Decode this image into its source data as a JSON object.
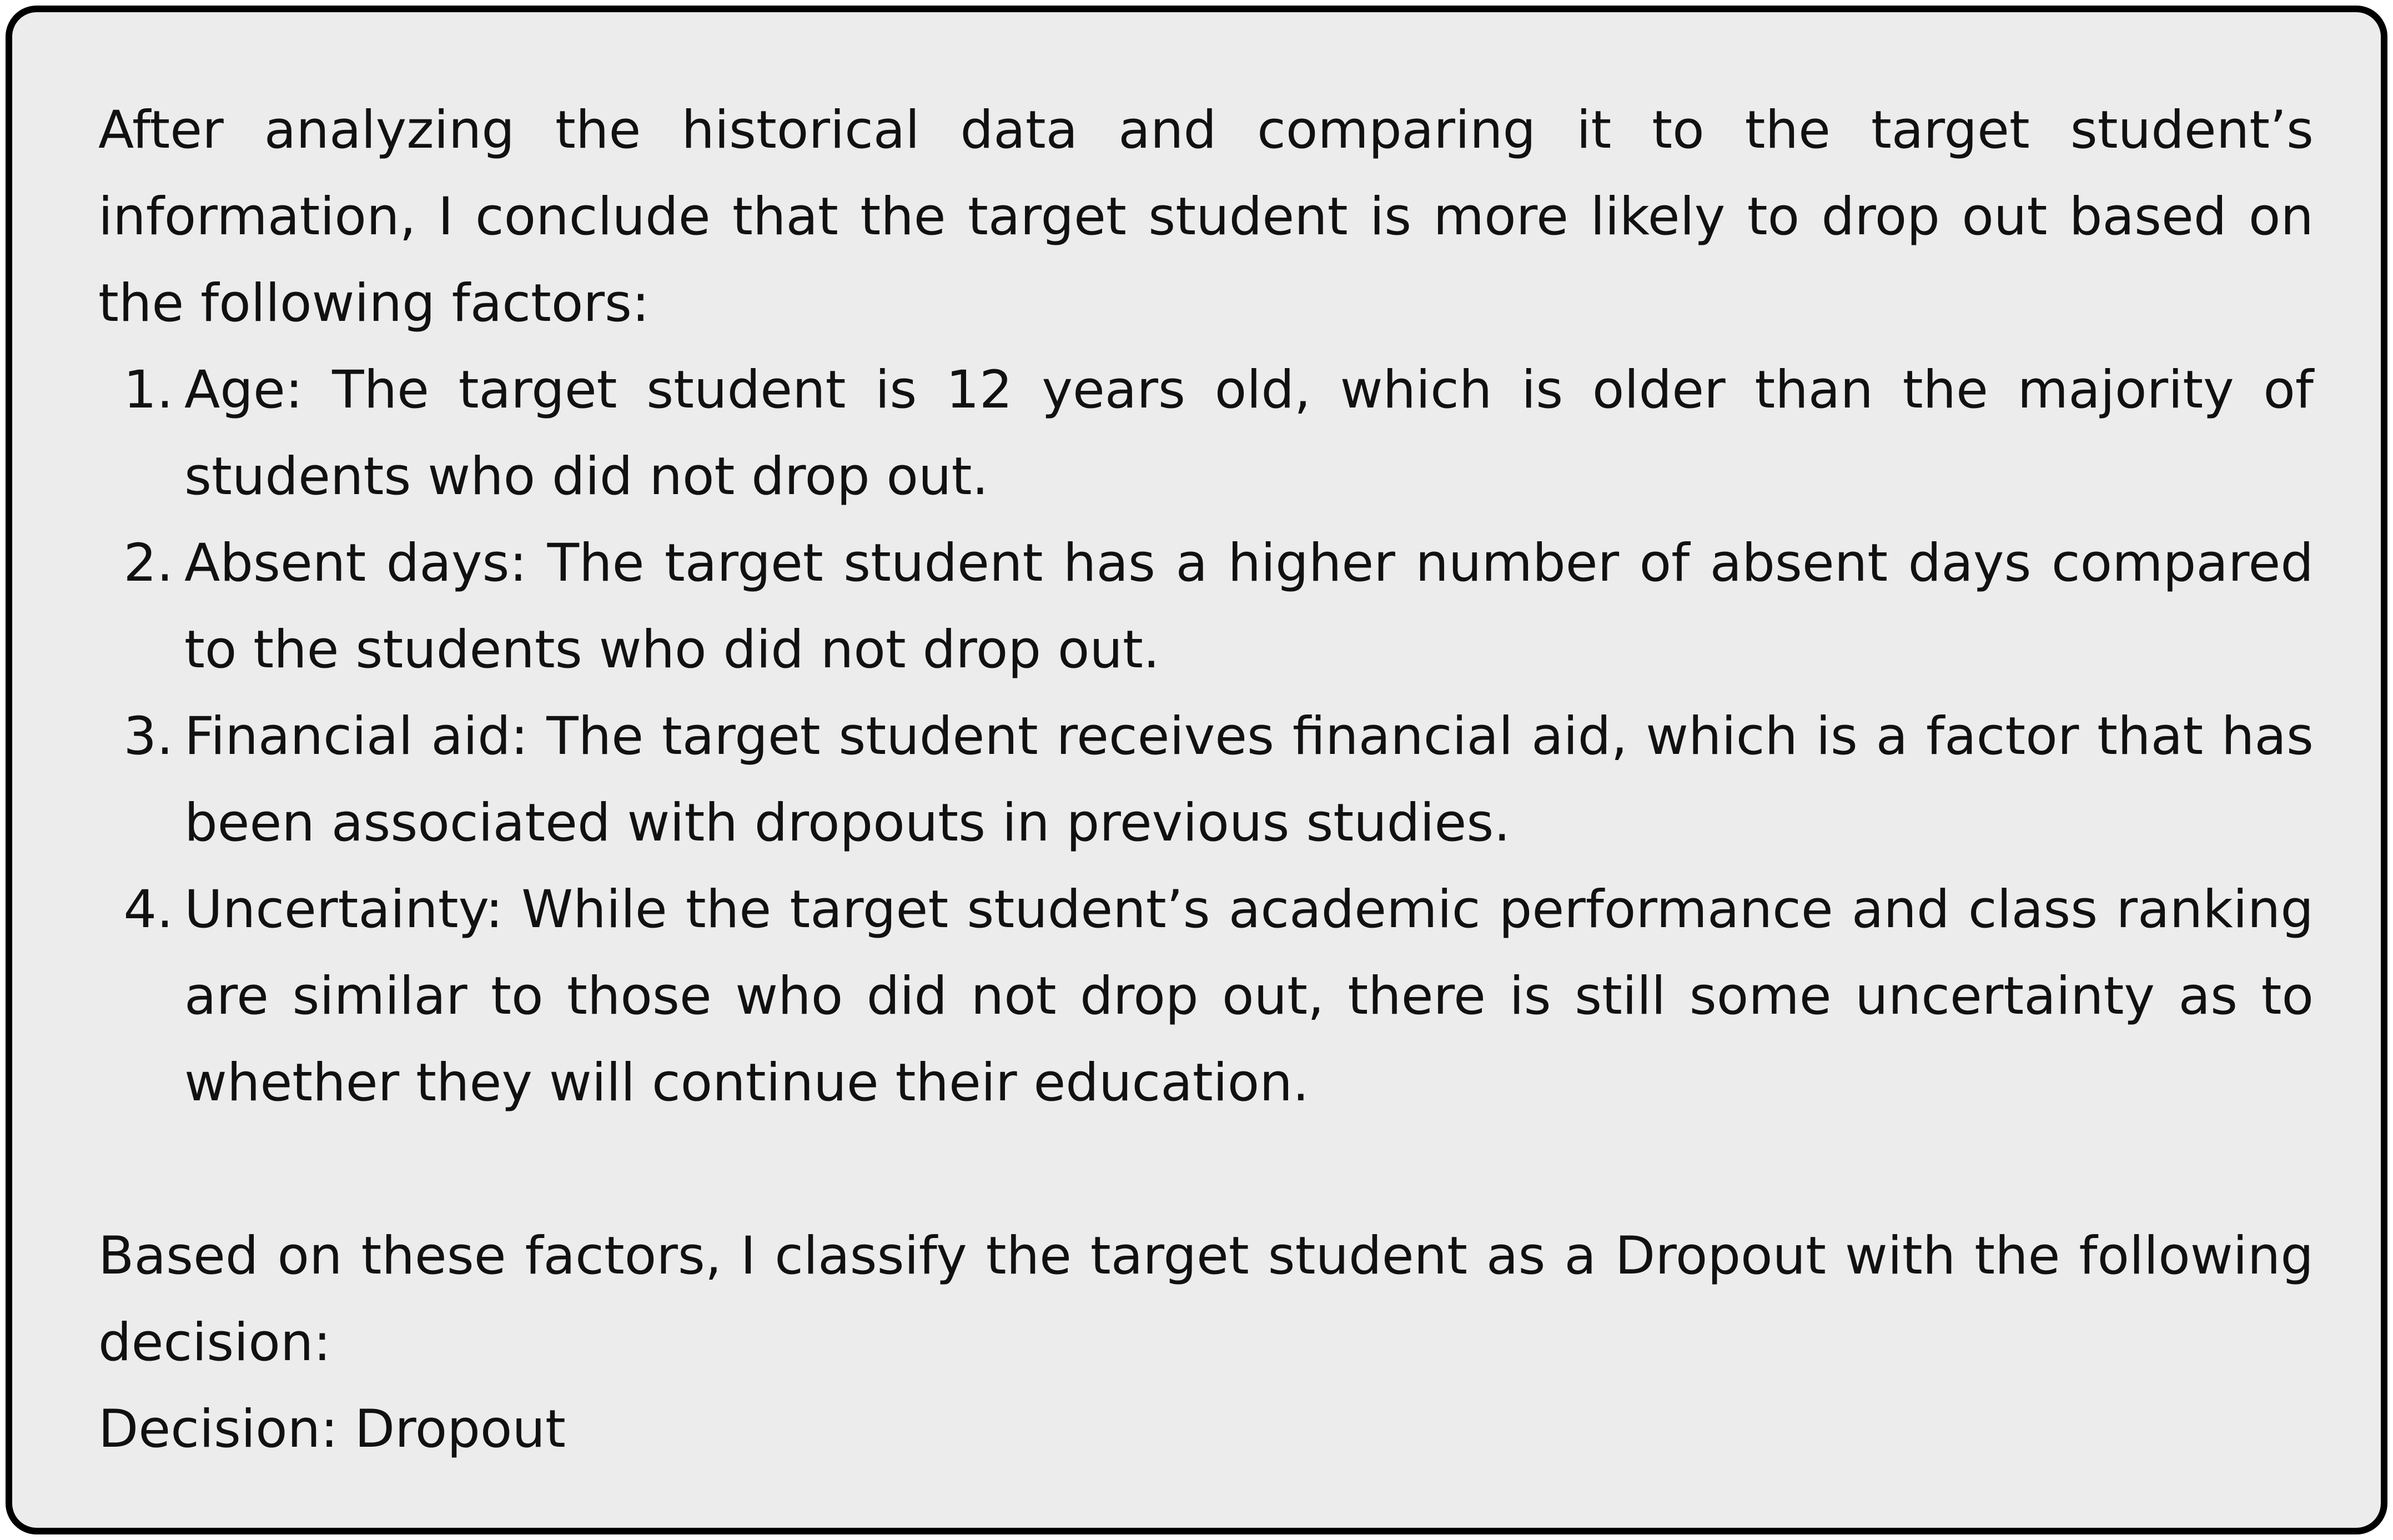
{
  "intro": "After analyzing the historical data and comparing it to the target student’s information, I conclude that the target student is more likely to drop out based on the following factors:",
  "factors": [
    {
      "number": "1.",
      "text": "Age: The target student is 12 years old, which is older than the majority of students who did not drop out."
    },
    {
      "number": "2.",
      "text": "Absent days: The target student has a higher number of absent days compared to the students who did not drop out."
    },
    {
      "number": "3.",
      "text": "Financial aid: The target student receives financial aid, which is a factor that has been associated with dropouts in previous studies."
    },
    {
      "number": "4.",
      "text": "Uncertainty: While the target student’s academic performance and class ranking are similar to those who did not drop out, there is still some uncertainty as to whether they will continue their education."
    }
  ],
  "conclusion": "Based on these factors, I classify the target student as a Dropout with the following decision:",
  "decision": "Decision: Dropout"
}
